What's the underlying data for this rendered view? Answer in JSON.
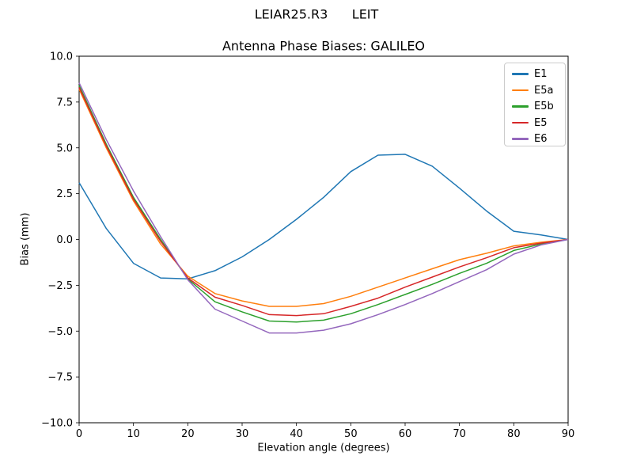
{
  "figure": {
    "suptitle": "LEIAR25.R3      LEIT",
    "background": "#ffffff"
  },
  "chart_data": {
    "type": "line",
    "title": "Antenna Phase Biases: GALILEO",
    "xlabel": "Elevation angle (degrees)",
    "ylabel": "Bias (mm)",
    "xlim": [
      0,
      90
    ],
    "ylim": [
      -10,
      10
    ],
    "xticks": [
      0,
      10,
      20,
      30,
      40,
      50,
      60,
      70,
      80,
      90
    ],
    "yticks": [
      10.0,
      7.5,
      5.0,
      2.5,
      0.0,
      -2.5,
      -5.0,
      -7.5,
      -10.0
    ],
    "grid": false,
    "axes_color": "#000000",
    "legend_location": "upper right",
    "x": [
      0,
      5,
      10,
      15,
      20,
      25,
      30,
      35,
      40,
      45,
      50,
      55,
      60,
      65,
      70,
      75,
      80,
      85,
      90
    ],
    "series": [
      {
        "name": "E1",
        "color": "#1f77b4",
        "values": [
          3.1,
          0.6,
          -1.3,
          -2.1,
          -2.15,
          -1.7,
          -0.95,
          0.0,
          1.1,
          2.3,
          3.7,
          4.6,
          4.65,
          4.0,
          2.8,
          1.55,
          0.45,
          0.25,
          0.0
        ]
      },
      {
        "name": "E5a",
        "color": "#ff7f0e",
        "values": [
          8.2,
          5.0,
          2.1,
          -0.25,
          -2.0,
          -2.95,
          -3.35,
          -3.65,
          -3.65,
          -3.5,
          -3.1,
          -2.6,
          -2.1,
          -1.6,
          -1.1,
          -0.75,
          -0.35,
          -0.15,
          0.0
        ]
      },
      {
        "name": "E5b",
        "color": "#2ca02c",
        "values": [
          8.4,
          5.2,
          2.3,
          0.0,
          -2.15,
          -3.4,
          -3.95,
          -4.45,
          -4.5,
          -4.4,
          -4.05,
          -3.55,
          -3.0,
          -2.45,
          -1.85,
          -1.3,
          -0.6,
          -0.25,
          0.0
        ]
      },
      {
        "name": "E5",
        "color": "#d62728",
        "values": [
          8.3,
          5.1,
          2.2,
          -0.1,
          -2.1,
          -3.15,
          -3.6,
          -4.1,
          -4.15,
          -4.05,
          -3.65,
          -3.2,
          -2.6,
          -2.05,
          -1.5,
          -1.0,
          -0.45,
          -0.2,
          0.0
        ]
      },
      {
        "name": "E6",
        "color": "#9467bd",
        "values": [
          8.55,
          5.45,
          2.65,
          0.15,
          -2.2,
          -3.8,
          -4.45,
          -5.1,
          -5.1,
          -4.95,
          -4.6,
          -4.1,
          -3.55,
          -2.95,
          -2.3,
          -1.65,
          -0.8,
          -0.3,
          0.0
        ]
      }
    ]
  }
}
